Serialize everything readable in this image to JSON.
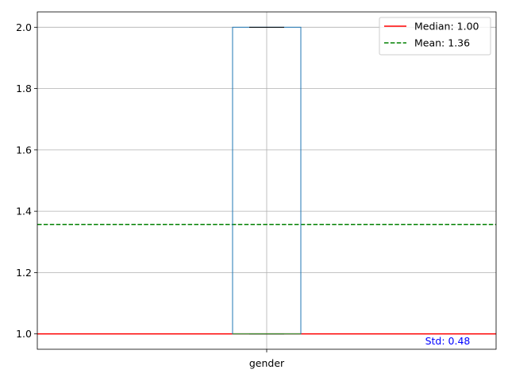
{
  "chart_data": {
    "type": "box",
    "category": "gender",
    "box": {
      "min": 1.0,
      "q1": 1.0,
      "median": 1.0,
      "q3": 2.0,
      "max": 2.0
    },
    "ylim": [
      0.95,
      2.05
    ],
    "yticks": [
      "1.0",
      "1.2",
      "1.4",
      "1.6",
      "1.8",
      "2.0"
    ],
    "grid": true,
    "reference_lines": [
      {
        "label": "Median: 1.00",
        "y": 1.0,
        "color": "#ff0000",
        "style": "solid"
      },
      {
        "label": "Mean: 1.36",
        "y": 1.3571,
        "color": "#008000",
        "style": "dashed"
      }
    ],
    "annotation": {
      "text": "Std: 0.48",
      "color": "#0000ff"
    },
    "legend_position": "top-right",
    "colors": {
      "box": "#1f77b4",
      "box_median": "#2ca02c",
      "whisker_cap": "#000000",
      "grid": "#b0b0b0"
    }
  }
}
